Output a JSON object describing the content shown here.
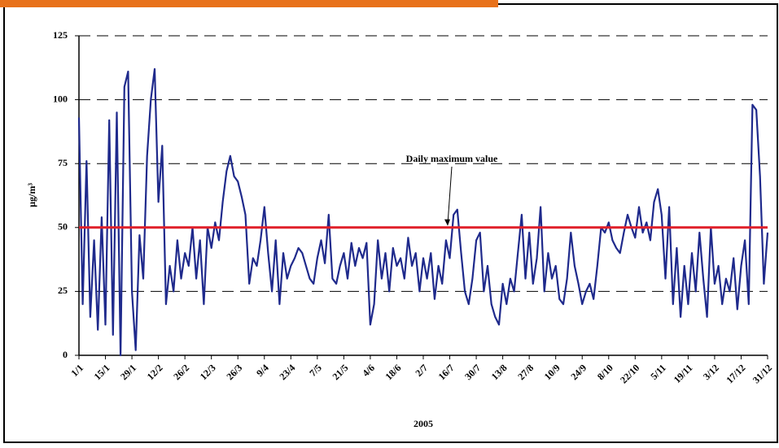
{
  "chart_data": {
    "type": "line",
    "ylabel": "µg/m³",
    "xlabel": "2005",
    "categories": [
      "1/1",
      null,
      null,
      null,
      null,
      null,
      null,
      "15/1",
      null,
      null,
      null,
      null,
      null,
      null,
      "29/1",
      null,
      null,
      null,
      null,
      null,
      null,
      "12/2",
      null,
      null,
      null,
      null,
      null,
      null,
      "26/2",
      null,
      null,
      null,
      null,
      null,
      null,
      "12/3",
      null,
      null,
      null,
      null,
      null,
      null,
      "26/3",
      null,
      null,
      null,
      null,
      null,
      null,
      "9/4",
      null,
      null,
      null,
      null,
      null,
      null,
      "23/4",
      null,
      null,
      null,
      null,
      null,
      null,
      "7/5",
      null,
      null,
      null,
      null,
      null,
      null,
      "21/5",
      null,
      null,
      null,
      null,
      null,
      null,
      "4/6",
      null,
      null,
      null,
      null,
      null,
      null,
      "18/6",
      null,
      null,
      null,
      null,
      null,
      null,
      "2/7",
      null,
      null,
      null,
      null,
      null,
      null,
      "16/7",
      null,
      null,
      null,
      null,
      null,
      null,
      "30/7",
      null,
      null,
      null,
      null,
      null,
      null,
      "13/8",
      null,
      null,
      null,
      null,
      null,
      null,
      "27/8",
      null,
      null,
      null,
      null,
      null,
      null,
      "10/9",
      null,
      null,
      null,
      null,
      null,
      null,
      "24/9",
      null,
      null,
      null,
      null,
      null,
      null,
      "8/10",
      null,
      null,
      null,
      null,
      null,
      null,
      "22/10",
      null,
      null,
      null,
      null,
      null,
      null,
      "5/11",
      null,
      null,
      null,
      null,
      null,
      null,
      "19/11",
      null,
      null,
      null,
      null,
      null,
      null,
      "3/12",
      null,
      null,
      null,
      null,
      null,
      null,
      "17/12",
      null,
      null,
      null,
      null,
      null,
      null,
      "31/12"
    ],
    "series": [
      {
        "color": "#1f2a8c",
        "values": [
          93,
          20,
          76,
          15,
          45,
          10,
          54,
          12,
          92,
          8,
          95,
          0,
          105,
          111,
          25,
          2,
          47,
          30,
          78,
          100,
          112,
          60,
          82,
          20,
          35,
          25,
          45,
          30,
          40,
          35,
          50,
          30,
          45,
          20,
          50,
          42,
          52,
          45,
          60,
          72,
          78,
          70,
          68,
          62,
          55,
          28,
          38,
          35,
          45,
          58,
          40,
          25,
          45,
          20,
          40,
          30,
          35,
          38,
          42,
          40,
          35,
          30,
          28,
          38,
          45,
          36,
          55,
          30,
          28,
          35,
          40,
          30,
          44,
          35,
          42,
          38,
          44,
          12,
          20,
          45,
          30,
          40,
          25,
          42,
          35,
          38,
          30,
          46,
          35,
          40,
          25,
          38,
          30,
          40,
          22,
          35,
          28,
          45,
          38,
          55,
          57,
          40,
          25,
          20,
          30,
          45,
          48,
          25,
          35,
          20,
          15,
          12,
          28,
          20,
          30,
          25,
          40,
          55,
          30,
          48,
          28,
          38,
          58,
          25,
          40,
          30,
          35,
          22,
          20,
          30,
          48,
          35,
          28,
          20,
          25,
          28,
          22,
          35,
          50,
          48,
          52,
          45,
          42,
          40,
          48,
          55,
          50,
          46,
          58,
          48,
          52,
          45,
          60,
          65,
          55,
          30,
          58,
          20,
          42,
          15,
          35,
          20,
          40,
          25,
          48,
          30,
          15,
          50,
          28,
          35,
          20,
          30,
          25,
          38,
          18,
          35,
          45,
          20,
          98,
          96,
          70,
          28,
          48
        ]
      }
    ],
    "threshold": {
      "value": 50,
      "label": "Daily maximum value",
      "color": "#e0202a"
    },
    "ylim": [
      0,
      125
    ],
    "yticks": [
      0,
      25,
      50,
      75,
      100,
      125
    ],
    "grid": true
  }
}
